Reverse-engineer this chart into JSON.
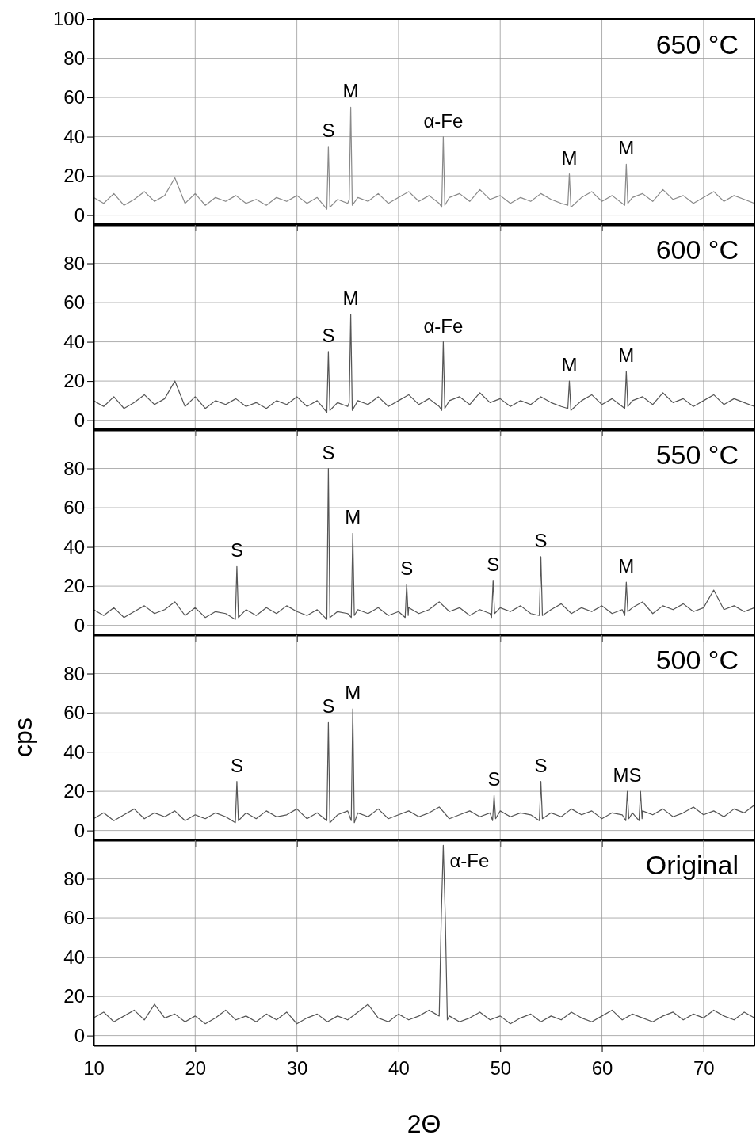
{
  "chart_data": [
    {
      "type": "line",
      "title": "650 °C",
      "color": "#8a8a8a",
      "xlim": [
        10,
        75
      ],
      "ylim": [
        -5,
        100
      ],
      "xticks": [
        10,
        20,
        30,
        40,
        50,
        60,
        70
      ],
      "yticks": [
        0,
        20,
        40,
        60,
        80,
        100
      ],
      "grid": true,
      "tick_labels": "y",
      "x": [
        10,
        11,
        12,
        13,
        14,
        15,
        16,
        17,
        18,
        19,
        20,
        21,
        22,
        23,
        24,
        25,
        26,
        27,
        28,
        29,
        30,
        31,
        32,
        32.95,
        33.1,
        33.25,
        34,
        35,
        35.15,
        35.3,
        35.45,
        36,
        37,
        38,
        39,
        40,
        41,
        42,
        43,
        44,
        44.25,
        44.4,
        44.55,
        45,
        46,
        47,
        48,
        49,
        50,
        51,
        52,
        53,
        54,
        55,
        56,
        56.65,
        56.8,
        56.95,
        58,
        59,
        60,
        61,
        62,
        62.25,
        62.4,
        62.55,
        63,
        64,
        65,
        66,
        67,
        68,
        69,
        70,
        71,
        72,
        73,
        74,
        75
      ],
      "values": [
        9,
        6,
        11,
        5,
        8,
        12,
        7,
        10,
        19,
        6,
        11,
        5,
        9,
        7,
        10,
        6,
        8,
        5,
        9,
        7,
        10,
        6,
        9,
        3,
        35,
        4,
        8,
        6,
        8,
        55,
        5,
        9,
        7,
        11,
        6,
        9,
        12,
        7,
        10,
        6,
        4,
        40,
        5,
        9,
        11,
        7,
        13,
        8,
        10,
        6,
        9,
        7,
        11,
        8,
        6,
        5,
        21,
        4,
        9,
        12,
        7,
        10,
        6,
        5,
        26,
        6,
        9,
        11,
        7,
        13,
        8,
        10,
        6,
        9,
        12,
        7,
        10,
        8,
        6
      ],
      "annotations": [
        {
          "text": "S",
          "x": 33.1,
          "y": 35
        },
        {
          "text": "M",
          "x": 35.3,
          "y": 55
        },
        {
          "text": "α-Fe",
          "x": 44.4,
          "y": 40
        },
        {
          "text": "M",
          "x": 56.8,
          "y": 21
        },
        {
          "text": "M",
          "x": 62.4,
          "y": 26
        }
      ]
    },
    {
      "type": "line",
      "title": "600 °C",
      "color": "#555555",
      "xlim": [
        10,
        75
      ],
      "ylim": [
        -5,
        100
      ],
      "xticks": [
        10,
        20,
        30,
        40,
        50,
        60,
        70
      ],
      "yticks": [
        0,
        20,
        40,
        60,
        80
      ],
      "grid": true,
      "tick_labels": "y",
      "x": [
        10,
        11,
        12,
        13,
        14,
        15,
        16,
        17,
        18,
        19,
        20,
        21,
        22,
        23,
        24,
        25,
        26,
        27,
        28,
        29,
        30,
        31,
        32,
        32.95,
        33.1,
        33.25,
        34,
        35,
        35.15,
        35.3,
        35.45,
        36,
        37,
        38,
        39,
        40,
        41,
        42,
        43,
        44,
        44.25,
        44.4,
        44.55,
        45,
        46,
        47,
        48,
        49,
        50,
        51,
        52,
        53,
        54,
        55,
        56,
        56.65,
        56.8,
        56.95,
        58,
        59,
        60,
        61,
        62,
        62.25,
        62.4,
        62.55,
        63,
        64,
        65,
        66,
        67,
        68,
        69,
        70,
        71,
        72,
        73,
        74,
        75
      ],
      "values": [
        10,
        7,
        12,
        6,
        9,
        13,
        8,
        11,
        20,
        7,
        12,
        6,
        10,
        8,
        11,
        7,
        9,
        6,
        10,
        8,
        12,
        7,
        10,
        4,
        35,
        5,
        9,
        7,
        9,
        54,
        5,
        10,
        8,
        12,
        7,
        10,
        13,
        8,
        11,
        7,
        5,
        40,
        6,
        10,
        12,
        8,
        14,
        9,
        11,
        7,
        10,
        8,
        12,
        9,
        7,
        6,
        20,
        5,
        10,
        13,
        8,
        11,
        7,
        6,
        25,
        7,
        10,
        12,
        8,
        14,
        9,
        11,
        7,
        10,
        13,
        8,
        11,
        9,
        7
      ],
      "annotations": [
        {
          "text": "S",
          "x": 33.1,
          "y": 35
        },
        {
          "text": "M",
          "x": 35.3,
          "y": 54
        },
        {
          "text": "α-Fe",
          "x": 44.4,
          "y": 40
        },
        {
          "text": "M",
          "x": 56.8,
          "y": 20
        },
        {
          "text": "M",
          "x": 62.4,
          "y": 25
        }
      ]
    },
    {
      "type": "line",
      "title": "550 °C",
      "color": "#555555",
      "xlim": [
        10,
        75
      ],
      "ylim": [
        -5,
        100
      ],
      "xticks": [
        10,
        20,
        30,
        40,
        50,
        60,
        70
      ],
      "yticks": [
        0,
        20,
        40,
        60,
        80
      ],
      "grid": true,
      "tick_labels": "y",
      "x": [
        10,
        11,
        12,
        13,
        14,
        15,
        16,
        17,
        18,
        19,
        20,
        21,
        22,
        23,
        23.95,
        24.1,
        24.25,
        25,
        26,
        27,
        28,
        29,
        30,
        31,
        32,
        32.95,
        33.1,
        33.25,
        34,
        35,
        35.35,
        35.5,
        35.65,
        36,
        37,
        38,
        39,
        40,
        40.65,
        40.8,
        40.95,
        41,
        42,
        43,
        44,
        45,
        46,
        47,
        48,
        49,
        49.15,
        49.3,
        49.45,
        50,
        51,
        52,
        53,
        53.85,
        54,
        54.15,
        55,
        56,
        57,
        58,
        59,
        60,
        61,
        62,
        62.25,
        62.4,
        62.55,
        63,
        64,
        65,
        66,
        67,
        68,
        69,
        70,
        71,
        72,
        73,
        74,
        75
      ],
      "values": [
        8,
        5,
        9,
        4,
        7,
        10,
        6,
        8,
        12,
        5,
        9,
        4,
        7,
        6,
        3,
        30,
        4,
        8,
        5,
        9,
        6,
        10,
        7,
        5,
        8,
        3,
        80,
        4,
        7,
        6,
        4,
        47,
        5,
        8,
        6,
        9,
        5,
        7,
        4,
        21,
        5,
        9,
        6,
        8,
        12,
        7,
        9,
        5,
        8,
        6,
        4,
        23,
        6,
        9,
        7,
        10,
        6,
        5,
        35,
        5,
        8,
        11,
        6,
        9,
        7,
        10,
        6,
        8,
        5,
        22,
        7,
        9,
        12,
        6,
        10,
        8,
        11,
        7,
        9,
        18,
        8,
        10,
        7,
        9
      ],
      "annotations": [
        {
          "text": "S",
          "x": 24.1,
          "y": 30
        },
        {
          "text": "S",
          "x": 33.1,
          "y": 80
        },
        {
          "text": "M",
          "x": 35.5,
          "y": 47
        },
        {
          "text": "S",
          "x": 40.8,
          "y": 21
        },
        {
          "text": "S",
          "x": 49.3,
          "y": 23
        },
        {
          "text": "S",
          "x": 54,
          "y": 35
        },
        {
          "text": "M",
          "x": 62.4,
          "y": 22
        }
      ]
    },
    {
      "type": "line",
      "title": "500 °C",
      "ylabel": "cps",
      "color": "#555555",
      "xlim": [
        10,
        75
      ],
      "ylim": [
        -5,
        100
      ],
      "xticks": [
        10,
        20,
        30,
        40,
        50,
        60,
        70
      ],
      "yticks": [
        0,
        20,
        40,
        60,
        80
      ],
      "grid": true,
      "tick_labels": "y",
      "x": [
        10,
        11,
        12,
        13,
        14,
        15,
        16,
        17,
        18,
        19,
        20,
        21,
        22,
        23,
        23.95,
        24.1,
        24.25,
        25,
        26,
        27,
        28,
        29,
        30,
        31,
        32,
        32.95,
        33.1,
        33.25,
        34,
        35,
        35.35,
        35.5,
        35.65,
        36,
        37,
        38,
        39,
        40,
        41,
        42,
        43,
        44,
        45,
        46,
        47,
        48,
        49,
        49.25,
        49.4,
        49.55,
        50,
        51,
        52,
        53,
        53.85,
        54,
        54.15,
        55,
        56,
        57,
        58,
        59,
        60,
        61,
        62,
        62.35,
        62.5,
        62.65,
        63,
        63.65,
        63.8,
        63.95,
        64,
        65,
        66,
        67,
        68,
        69,
        70,
        71,
        72,
        73,
        74,
        75
      ],
      "values": [
        6,
        9,
        5,
        8,
        11,
        6,
        9,
        7,
        10,
        5,
        8,
        6,
        9,
        7,
        4,
        25,
        5,
        9,
        6,
        10,
        7,
        8,
        11,
        6,
        9,
        5,
        55,
        4,
        8,
        10,
        5,
        62,
        4,
        9,
        7,
        11,
        6,
        8,
        10,
        7,
        9,
        12,
        6,
        8,
        10,
        7,
        9,
        5,
        18,
        6,
        10,
        7,
        9,
        8,
        5,
        25,
        6,
        9,
        7,
        11,
        8,
        10,
        6,
        9,
        8,
        5,
        20,
        6,
        9,
        5,
        20,
        6,
        10,
        8,
        11,
        7,
        9,
        12,
        8,
        10,
        7,
        11,
        9,
        13
      ],
      "annotations": [
        {
          "text": "S",
          "x": 24.1,
          "y": 25
        },
        {
          "text": "S",
          "x": 33.1,
          "y": 55
        },
        {
          "text": "M",
          "x": 35.5,
          "y": 62
        },
        {
          "text": "S",
          "x": 49.4,
          "y": 18
        },
        {
          "text": "S",
          "x": 54,
          "y": 25
        },
        {
          "text": "MS",
          "x": 62.5,
          "y": 20
        }
      ]
    },
    {
      "type": "line",
      "title": "Original",
      "xlabel": "2Θ",
      "color": "#555555",
      "xlim": [
        10,
        75
      ],
      "ylim": [
        -5,
        100
      ],
      "xticks": [
        10,
        20,
        30,
        40,
        50,
        60,
        70
      ],
      "yticks": [
        0,
        20,
        40,
        60,
        80
      ],
      "grid": true,
      "x": [
        10,
        11,
        12,
        13,
        14,
        15,
        16,
        17,
        18,
        19,
        20,
        21,
        22,
        23,
        24,
        25,
        26,
        27,
        28,
        29,
        30,
        31,
        32,
        33,
        34,
        35,
        36,
        37,
        38,
        39,
        40,
        41,
        42,
        43,
        44,
        44.2,
        44.4,
        44.6,
        44.8,
        45,
        46,
        47,
        48,
        49,
        50,
        51,
        52,
        53,
        54,
        55,
        56,
        57,
        58,
        59,
        60,
        61,
        62,
        63,
        64,
        65,
        66,
        67,
        68,
        69,
        70,
        71,
        72,
        73,
        74,
        75
      ],
      "values": [
        9,
        12,
        7,
        10,
        13,
        8,
        16,
        9,
        11,
        7,
        10,
        6,
        9,
        13,
        8,
        10,
        7,
        11,
        8,
        12,
        6,
        9,
        11,
        7,
        10,
        8,
        12,
        16,
        9,
        7,
        11,
        8,
        10,
        13,
        10,
        60,
        97,
        60,
        8,
        10,
        7,
        9,
        12,
        8,
        10,
        6,
        9,
        11,
        7,
        10,
        8,
        12,
        9,
        7,
        10,
        13,
        8,
        11,
        9,
        7,
        10,
        12,
        8,
        11,
        9,
        13,
        10,
        8,
        12,
        9
      ],
      "annotations": [
        {
          "text": "α-Fe",
          "x": 44.4,
          "y": 97
        }
      ]
    }
  ]
}
